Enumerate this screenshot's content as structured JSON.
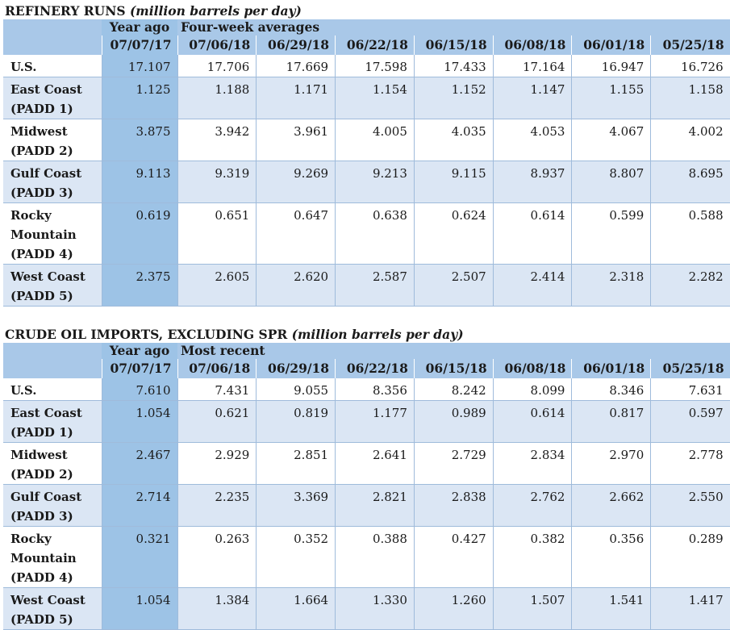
{
  "refinery": {
    "title_main": "REFINERY RUNS ",
    "title_unit": "(million barrels per day)",
    "header_year_ago": "Year ago",
    "header_group": "Four-week averages",
    "dates": [
      "07/07/17",
      "07/06/18",
      "06/29/18",
      "06/22/18",
      "06/15/18",
      "06/08/18",
      "06/01/18",
      "05/25/18"
    ],
    "rows": [
      {
        "label": [
          "U.S."
        ],
        "values": [
          "17.107",
          "17.706",
          "17.669",
          "17.598",
          "17.433",
          "17.164",
          "16.947",
          "16.726"
        ]
      },
      {
        "label": [
          "East Coast",
          "(PADD 1)"
        ],
        "values": [
          "1.125",
          "1.188",
          "1.171",
          "1.154",
          "1.152",
          "1.147",
          "1.155",
          "1.158"
        ]
      },
      {
        "label": [
          "Midwest",
          "(PADD 2)"
        ],
        "values": [
          "3.875",
          "3.942",
          "3.961",
          "4.005",
          "4.035",
          "4.053",
          "4.067",
          "4.002"
        ]
      },
      {
        "label": [
          "Gulf Coast",
          "(PADD 3)"
        ],
        "values": [
          "9.113",
          "9.319",
          "9.269",
          "9.213",
          "9.115",
          "8.937",
          "8.807",
          "8.695"
        ]
      },
      {
        "label": [
          "Rocky",
          "Mountain",
          "(PADD 4)"
        ],
        "values": [
          "0.619",
          "0.651",
          "0.647",
          "0.638",
          "0.624",
          "0.614",
          "0.599",
          "0.588"
        ]
      },
      {
        "label": [
          "West Coast",
          "(PADD 5)"
        ],
        "values": [
          "2.375",
          "2.605",
          "2.620",
          "2.587",
          "2.507",
          "2.414",
          "2.318",
          "2.282"
        ]
      }
    ]
  },
  "imports": {
    "title_main": "CRUDE OIL IMPORTS, EXCLUDING SPR ",
    "title_unit": "(million barrels per day)",
    "header_year_ago": "Year ago",
    "header_group": "Most recent",
    "dates": [
      "07/07/17",
      "07/06/18",
      "06/29/18",
      "06/22/18",
      "06/15/18",
      "06/08/18",
      "06/01/18",
      "05/25/18"
    ],
    "rows": [
      {
        "label": [
          "U.S."
        ],
        "values": [
          "7.610",
          "7.431",
          "9.055",
          "8.356",
          "8.242",
          "8.099",
          "8.346",
          "7.631"
        ]
      },
      {
        "label": [
          "East Coast",
          "(PADD 1)"
        ],
        "values": [
          "1.054",
          "0.621",
          "0.819",
          "1.177",
          "0.989",
          "0.614",
          "0.817",
          "0.597"
        ]
      },
      {
        "label": [
          "Midwest",
          "(PADD 2)"
        ],
        "values": [
          "2.467",
          "2.929",
          "2.851",
          "2.641",
          "2.729",
          "2.834",
          "2.970",
          "2.778"
        ]
      },
      {
        "label": [
          "Gulf Coast",
          "(PADD 3)"
        ],
        "values": [
          "2.714",
          "2.235",
          "3.369",
          "2.821",
          "2.838",
          "2.762",
          "2.662",
          "2.550"
        ]
      },
      {
        "label": [
          "Rocky",
          "Mountain",
          "(PADD 4)"
        ],
        "values": [
          "0.321",
          "0.263",
          "0.352",
          "0.388",
          "0.427",
          "0.382",
          "0.356",
          "0.289"
        ]
      },
      {
        "label": [
          "West Coast",
          "(PADD 5)"
        ],
        "values": [
          "1.054",
          "1.384",
          "1.664",
          "1.330",
          "1.260",
          "1.507",
          "1.541",
          "1.417"
        ]
      }
    ]
  }
}
